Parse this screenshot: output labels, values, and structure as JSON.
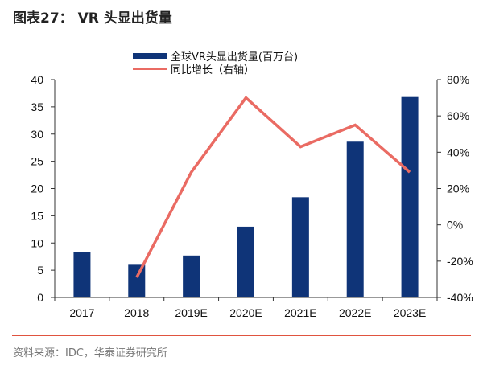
{
  "header": {
    "title": "图表27：  VR 头显出货量"
  },
  "footer": {
    "source": "资料来源：IDC，华泰证券研究所"
  },
  "chart_data": {
    "type": "bar+line",
    "title": "",
    "categories": [
      "2017",
      "2018",
      "2019E",
      "2020E",
      "2021E",
      "2022E",
      "2023E"
    ],
    "series": [
      {
        "name": "全球VR头显出货量(百万台)",
        "type": "bar",
        "axis": "left",
        "color": "#0f3478",
        "values": [
          8.4,
          6.0,
          7.7,
          13.0,
          18.4,
          28.6,
          36.8
        ]
      },
      {
        "name": "同比增长（右轴）",
        "type": "line",
        "axis": "right",
        "color": "#ea6b63",
        "values": [
          null,
          -29,
          29,
          70,
          43,
          55,
          29
        ]
      }
    ],
    "y_left": {
      "lim": [
        0,
        40
      ],
      "ticks": [
        "0",
        "5",
        "10",
        "15",
        "20",
        "25",
        "30",
        "35",
        "40"
      ]
    },
    "y_right": {
      "lim": [
        -40,
        80
      ],
      "ticks": [
        "-40%",
        "-20%",
        "0%",
        "20%",
        "40%",
        "60%",
        "80%"
      ]
    },
    "grid": false,
    "legend": "top-center"
  }
}
